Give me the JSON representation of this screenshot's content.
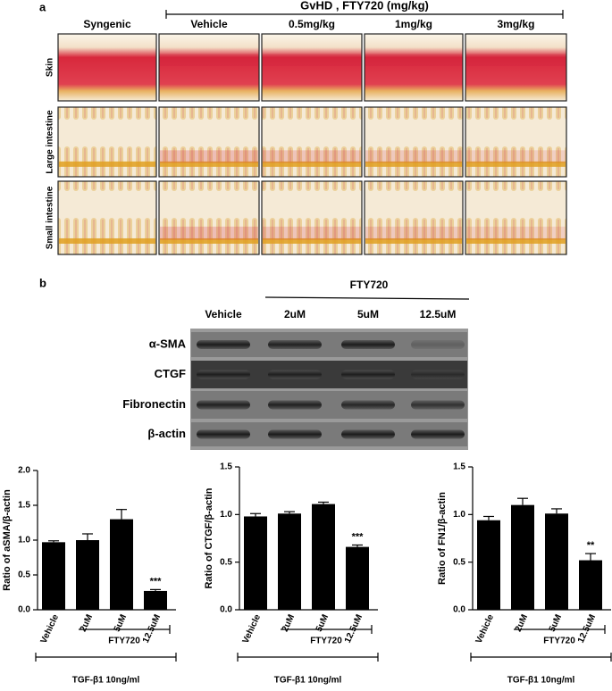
{
  "panel_a": {
    "label": "a",
    "group_header": "GvHD , FTY720 (mg/kg)",
    "columns": [
      "Syngenic",
      "Vehicle",
      "0.5mg/kg",
      "1mg/kg",
      "3mg/kg"
    ],
    "rows": [
      "Skin",
      "Large intestine",
      "Small intestine"
    ]
  },
  "panel_b": {
    "label": "b",
    "group_header": "FTY720",
    "lanes": [
      "Vehicle",
      "2uM",
      "5uM",
      "12.5uM"
    ],
    "bands": [
      "α-SMA",
      "CTGF",
      "Fibronectin",
      "β-actin"
    ]
  },
  "chart_data": [
    {
      "type": "bar",
      "y_label": "Ratio of aSMA/β-actin",
      "categories": [
        "Vehicle",
        "2uM",
        "5uM",
        "12.5uM"
      ],
      "values": [
        0.97,
        1.0,
        1.3,
        0.27
      ],
      "errors": [
        0.02,
        0.09,
        0.14,
        0.02
      ],
      "significance": [
        null,
        null,
        null,
        "***"
      ],
      "color": "#000000",
      "ylim": [
        0,
        2
      ],
      "yticks": [
        {
          "value": 0,
          "label": "0.0"
        },
        0.5,
        {
          "value": 1,
          "label": "1.0"
        },
        1.5,
        {
          "value": 2,
          "label": "2.0"
        }
      ],
      "bracket_inner": "FTY720",
      "bracket_outer": "TGF-β1 10ng/ml"
    },
    {
      "type": "bar",
      "y_label": "Ratio of CTGF/β-actin",
      "categories": [
        "Vehicle",
        "2uM",
        "5uM",
        "12.5uM"
      ],
      "values": [
        0.98,
        1.01,
        1.11,
        0.66
      ],
      "errors": [
        0.03,
        0.02,
        0.02,
        0.02
      ],
      "significance": [
        null,
        null,
        null,
        "***"
      ],
      "color": "#000000",
      "ylim": [
        0,
        1.5
      ],
      "yticks": [
        {
          "value": 0,
          "label": "0.0"
        },
        0.5,
        {
          "value": 1,
          "label": "1.0"
        },
        1.5
      ],
      "bracket_inner": "FTY720",
      "bracket_outer": "TGF-β1 10ng/ml"
    },
    {
      "type": "bar",
      "y_label": "Ratio of FN1/β-actin",
      "categories": [
        "Vehicle",
        "2uM",
        "5uM",
        "12.5uM"
      ],
      "values": [
        0.94,
        1.1,
        1.01,
        0.52
      ],
      "errors": [
        0.04,
        0.07,
        0.05,
        0.07
      ],
      "significance": [
        null,
        null,
        null,
        "**"
      ],
      "color": "#000000",
      "ylim": [
        0,
        1.5
      ],
      "yticks": [
        {
          "value": 0,
          "label": "0.0"
        },
        0.5,
        {
          "value": 1,
          "label": "1.0"
        },
        1.5
      ],
      "bracket_inner": "FTY720",
      "bracket_outer": "TGF-β1 10ng/ml"
    }
  ]
}
